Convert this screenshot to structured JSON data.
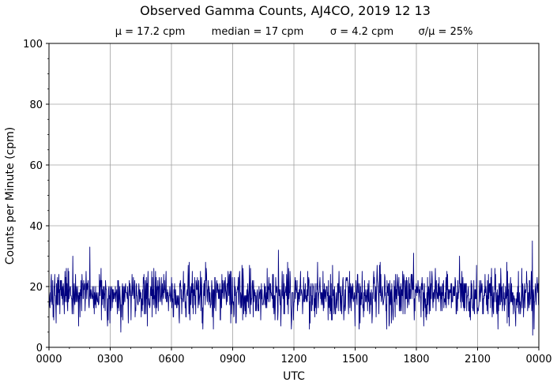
{
  "chart_data": {
    "type": "line",
    "title": "Observed Gamma Counts, AJ4CO, 2019 12 13",
    "stats": {
      "mean": "μ = 17.2 cpm",
      "median": "median = 17 cpm",
      "sigma": "σ = 4.2 cpm",
      "ratio": "σ/μ = 25%"
    },
    "xlabel": "UTC",
    "ylabel": "Counts per Minute (cpm)",
    "x_ticks": [
      "0000",
      "0300",
      "0600",
      "0900",
      "1200",
      "1500",
      "1800",
      "2100",
      "0000"
    ],
    "y_ticks": [
      "0",
      "20",
      "40",
      "60",
      "80",
      "100"
    ],
    "xlim_hours": [
      0,
      24
    ],
    "ylim": [
      0,
      100
    ],
    "grid": true,
    "line_color": "#000080",
    "series": [
      {
        "sampling": "1 minute",
        "approx_mean": 17.2,
        "approx_sigma": 4.2,
        "approx_range": [
          4,
          35
        ],
        "notable_points": [
          {
            "hour": 2.0,
            "value": 33
          },
          {
            "hour": 3.5,
            "value": 5
          },
          {
            "hour": 11.2,
            "value": 32
          },
          {
            "hour": 17.8,
            "value": 31
          },
          {
            "hour": 23.6,
            "value": 35
          },
          {
            "hour": 23.6,
            "value": 4
          }
        ]
      }
    ]
  }
}
